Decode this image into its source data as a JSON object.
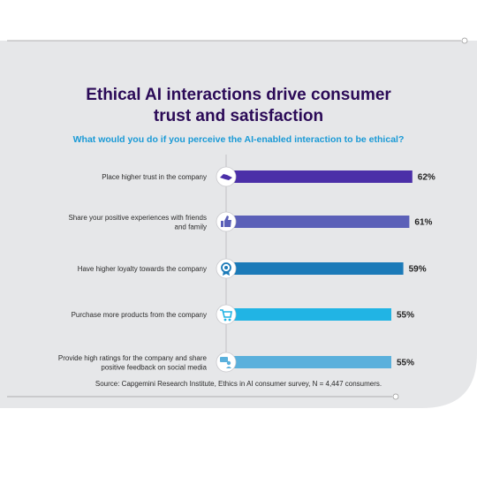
{
  "chart_data": {
    "type": "bar",
    "orientation": "horizontal",
    "title_lines": [
      "Ethical AI interactions drive consumer",
      "trust and satisfaction"
    ],
    "subtitle": "What would you do if you perceive the AI-enabled interaction to be ethical?",
    "categories": [
      [
        "Place higher trust in the company"
      ],
      [
        "Share your positive experiences with friends",
        "and family"
      ],
      [
        "Have higher loyalty towards the company"
      ],
      [
        "Purchase more products from the company"
      ],
      [
        "Provide high ratings for the company and share",
        "positive feedback on social media"
      ]
    ],
    "values": [
      62,
      61,
      59,
      55,
      55
    ],
    "value_labels": [
      "62%",
      "61%",
      "59%",
      "55%",
      "55%"
    ],
    "bar_colors": [
      "#4b2fa8",
      "#5b60b8",
      "#1b7ab8",
      "#21b4e4",
      "#5ab0dc"
    ],
    "icons": [
      "handshake-icon",
      "thumbs-up-icon",
      "award-badge-icon",
      "shopping-cart-icon",
      "chat-feedback-icon"
    ],
    "xlim": [
      0,
      100
    ],
    "source": "Source: Capgemini Research Institute, Ethics in AI consumer survey, N = 4,447 consumers."
  }
}
